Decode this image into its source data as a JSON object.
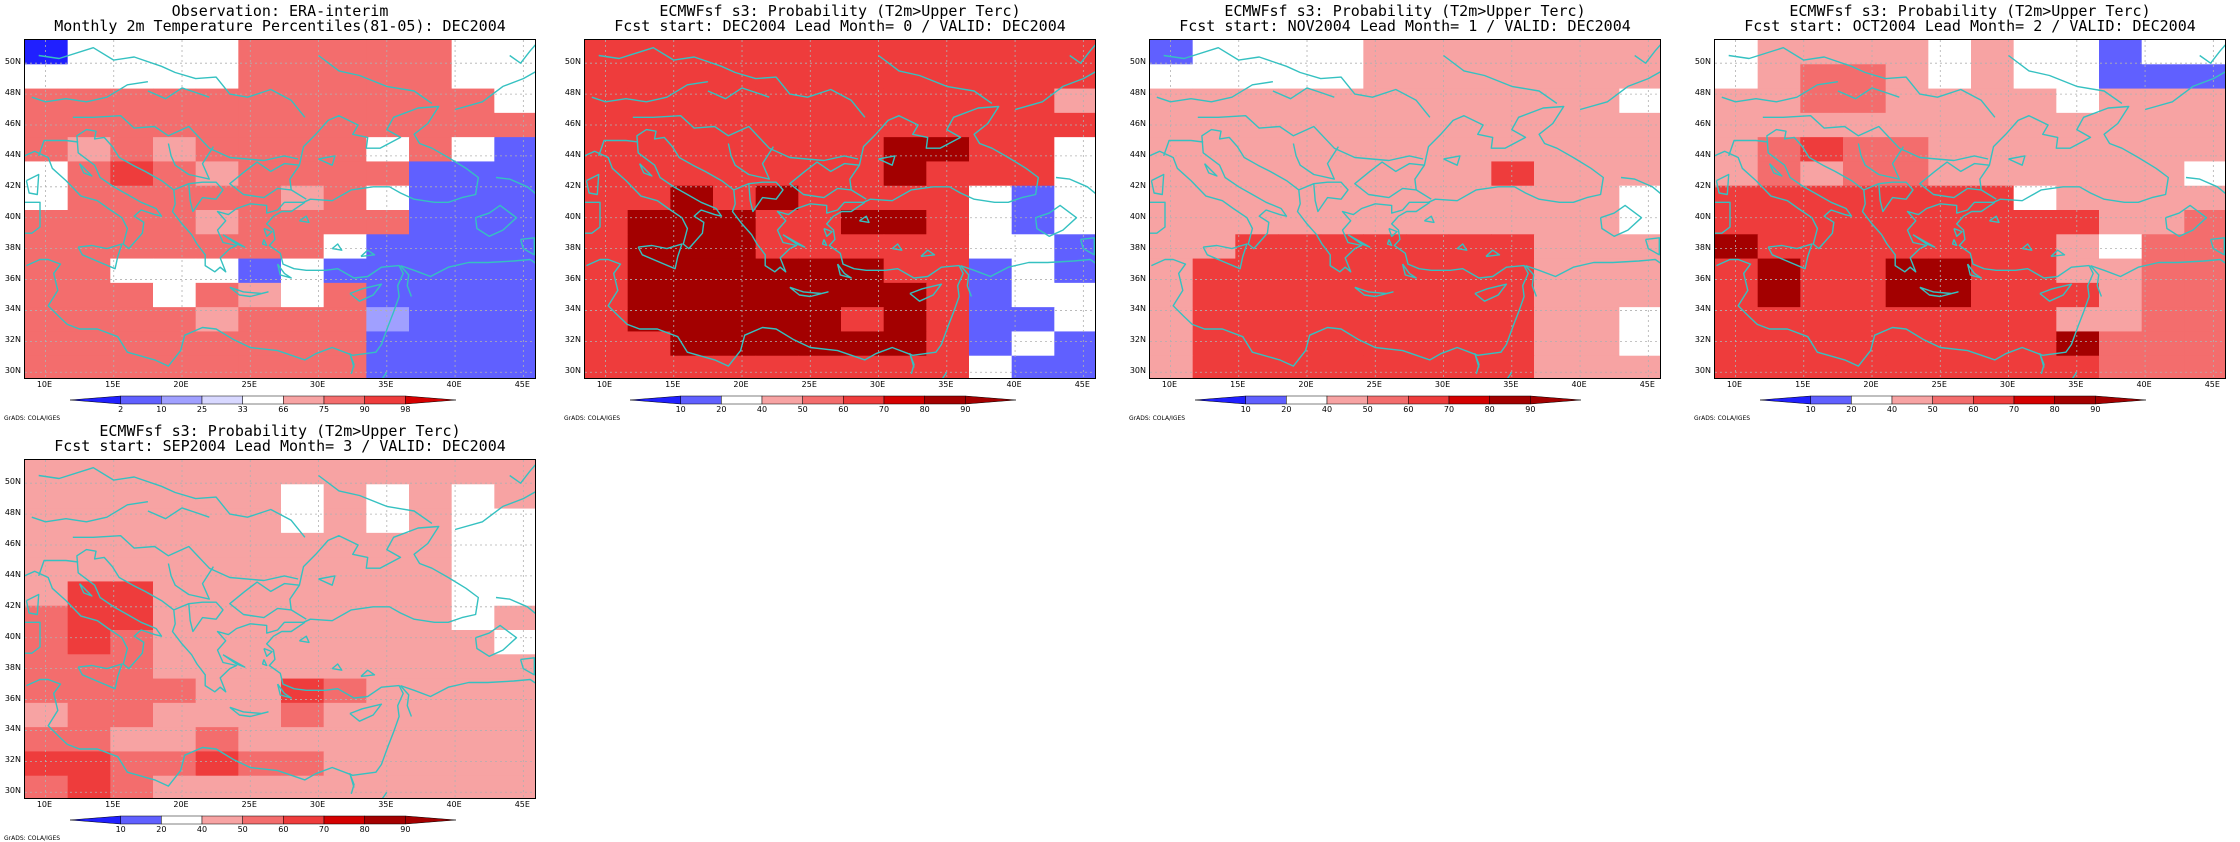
{
  "colors": {
    "blue_dark": "#2020ff",
    "blue_mid": "#6060ff",
    "blue_light": "#a0a0ff",
    "white": "#ffffff",
    "red_light": "#f7a3a3",
    "red_mid": "#f36d6d",
    "red": "#ee3c3c",
    "red_dark": "#d40000",
    "red_darker": "#a30000",
    "coast": "#35c1c1",
    "grid": "#b0b0b0"
  },
  "lat_labels": [
    "50N",
    "48N",
    "46N",
    "44N",
    "42N",
    "40N",
    "38N",
    "36N",
    "34N",
    "32N",
    "30N"
  ],
  "lon_labels": [
    "10E",
    "15E",
    "20E",
    "25E",
    "30E",
    "35E",
    "40E",
    "45E"
  ],
  "credit": "GrADS: COLA/IGES",
  "panels": [
    {
      "title1": "Observation: ERA-interim",
      "title2": "Monthly 2m Temperature Percentiles(81-05): DEC2004",
      "cbar_labels": [
        "2",
        "10",
        "25",
        "33",
        "66",
        "75",
        "90",
        "98"
      ],
      "cbar_colors": [
        "#2020ff",
        "#6060ff",
        "#a0a0ff",
        "#d8d8ff",
        "#ffffff",
        "#f7a3a3",
        "#f36d6d",
        "#ee3c3c",
        "#d40000"
      ],
      "grid": [
        "2wwwwrrrrrww",
        "wwwwwrrrrrww",
        "rrrrrrrrrrrw",
        "rrrrrrrrrrrr",
        "rlrlrrrrwrwb",
        "wrRrlrrrrbbb",
        "wrrrrrlrwbbb",
        "rrrrlrrrrbbb",
        "rrrrrrrwbbbb",
        "rrwwwbwbbbbb",
        "rrrwrlwrbbbb",
        "rrrrlrrr3bbb",
        "rrrrrrrrbbbb",
        "rrrrrrrrbbbb"
      ]
    },
    {
      "title1": "ECMWFsf s3: Probability (T2m>Upper Terc)",
      "title2": "Fcst start: DEC2004  Lead Month= 0 / VALID: DEC2004",
      "cbar_labels": [
        "10",
        "20",
        "40",
        "50",
        "60",
        "70",
        "80",
        "90"
      ],
      "cbar_colors": [
        "#2020ff",
        "#6060ff",
        "#ffffff",
        "#f7a3a3",
        "#f36d6d",
        "#ee3c3c",
        "#d40000",
        "#a30000",
        "#a30000"
      ],
      "grid": [
        "RRRRRRRRRRRR",
        "RRRRRRRRRRRR",
        "RRRRRRRRRRRl",
        "RRRRRRRRRRRR",
        "RRRRRRRDDRRw",
        "RRRRRRRDRRRw",
        "RRDRDRRRRwbw",
        "RDDDRRDDRwbw",
        "RDDDRRRRRwwb",
        "RDDDDDDRRbwb",
        "RDDDDDDDRbww",
        "RDDDDDRDRbbw",
        "RRDDDDDDRbwb",
        "RRRRRRRRRwbb"
      ]
    },
    {
      "title1": "ECMWFsf s3: Probability (T2m>Upper Terc)",
      "title2": "Fcst start: NOV2004  Lead Month= 1 / VALID: DEC2004",
      "cbar_labels": [
        "10",
        "20",
        "40",
        "50",
        "60",
        "70",
        "80",
        "90"
      ],
      "cbar_colors": [
        "#2020ff",
        "#6060ff",
        "#ffffff",
        "#f7a3a3",
        "#f36d6d",
        "#ee3c3c",
        "#d40000",
        "#a30000",
        "#a30000"
      ],
      "grid": [
        "bwwwwlllllll",
        "wwwwwlllllll",
        "lllllllllllw",
        "llllllllllll",
        "llllllllllll",
        "llllllllRlll",
        "lllllllllllw",
        "lllllllllllw",
        "llRRRRRRRlll",
        "lRRRRRRRRlll",
        "lRRRRRRRRlll",
        "lRRRRRRRRllw",
        "lRRRRRRRRllw",
        "lRRRRRRRRlll"
      ]
    },
    {
      "title1": "ECMWFsf s3: Probability (T2m>Upper Terc)",
      "title2": "Fcst start: OCT2004  Lead Month= 2 / VALID: DEC2004",
      "cbar_labels": [
        "10",
        "20",
        "40",
        "50",
        "60",
        "70",
        "80",
        "90"
      ],
      "cbar_colors": [
        "#2020ff",
        "#6060ff",
        "#ffffff",
        "#f7a3a3",
        "#f36d6d",
        "#ee3c3c",
        "#d40000",
        "#a30000",
        "#a30000"
      ],
      "grid": [
        "wllllwlwwbww",
        "wlrrlwlwwbbb",
        "llrrllllwlll",
        "llllllllllll",
        "lrRrrlllllll",
        "lrlrrllllllw",
        "RRRRRRRwllll",
        "RRRRRRRRRllr",
        "DRRRRRRRlwrr",
        "RDRRDDRRllrr",
        "RDRRDDRRRlrr",
        "RRRRRRRRllrr",
        "RRRRRRRRDrrr",
        "RRRRRRRRRrrr"
      ]
    },
    {
      "title1": "ECMWFsf s3: Probability (T2m>Upper Terc)",
      "title2": "Fcst start: SEP2004  Lead Month= 3 / VALID: DEC2004",
      "cbar_labels": [
        "10",
        "20",
        "40",
        "50",
        "60",
        "70",
        "80",
        "90"
      ],
      "cbar_colors": [
        "#2020ff",
        "#6060ff",
        "#ffffff",
        "#f7a3a3",
        "#f36d6d",
        "#ee3c3c",
        "#d40000",
        "#a30000",
        "#a30000"
      ],
      "grid": [
        "llllllllllll",
        "llllllwlwlwl",
        "llllllwlwlww",
        "llllllllllww",
        "llllllllllww",
        "lRRlllllllww",
        "rRRlllllllwl",
        "rRrllllllllw",
        "rrrlllllllll",
        "rrrrllRrllll",
        "lrrlllrlllll",
        "rrllrlllllll",
        "RRrrRrrlllll",
        "rRrlllllllll"
      ]
    }
  ]
}
